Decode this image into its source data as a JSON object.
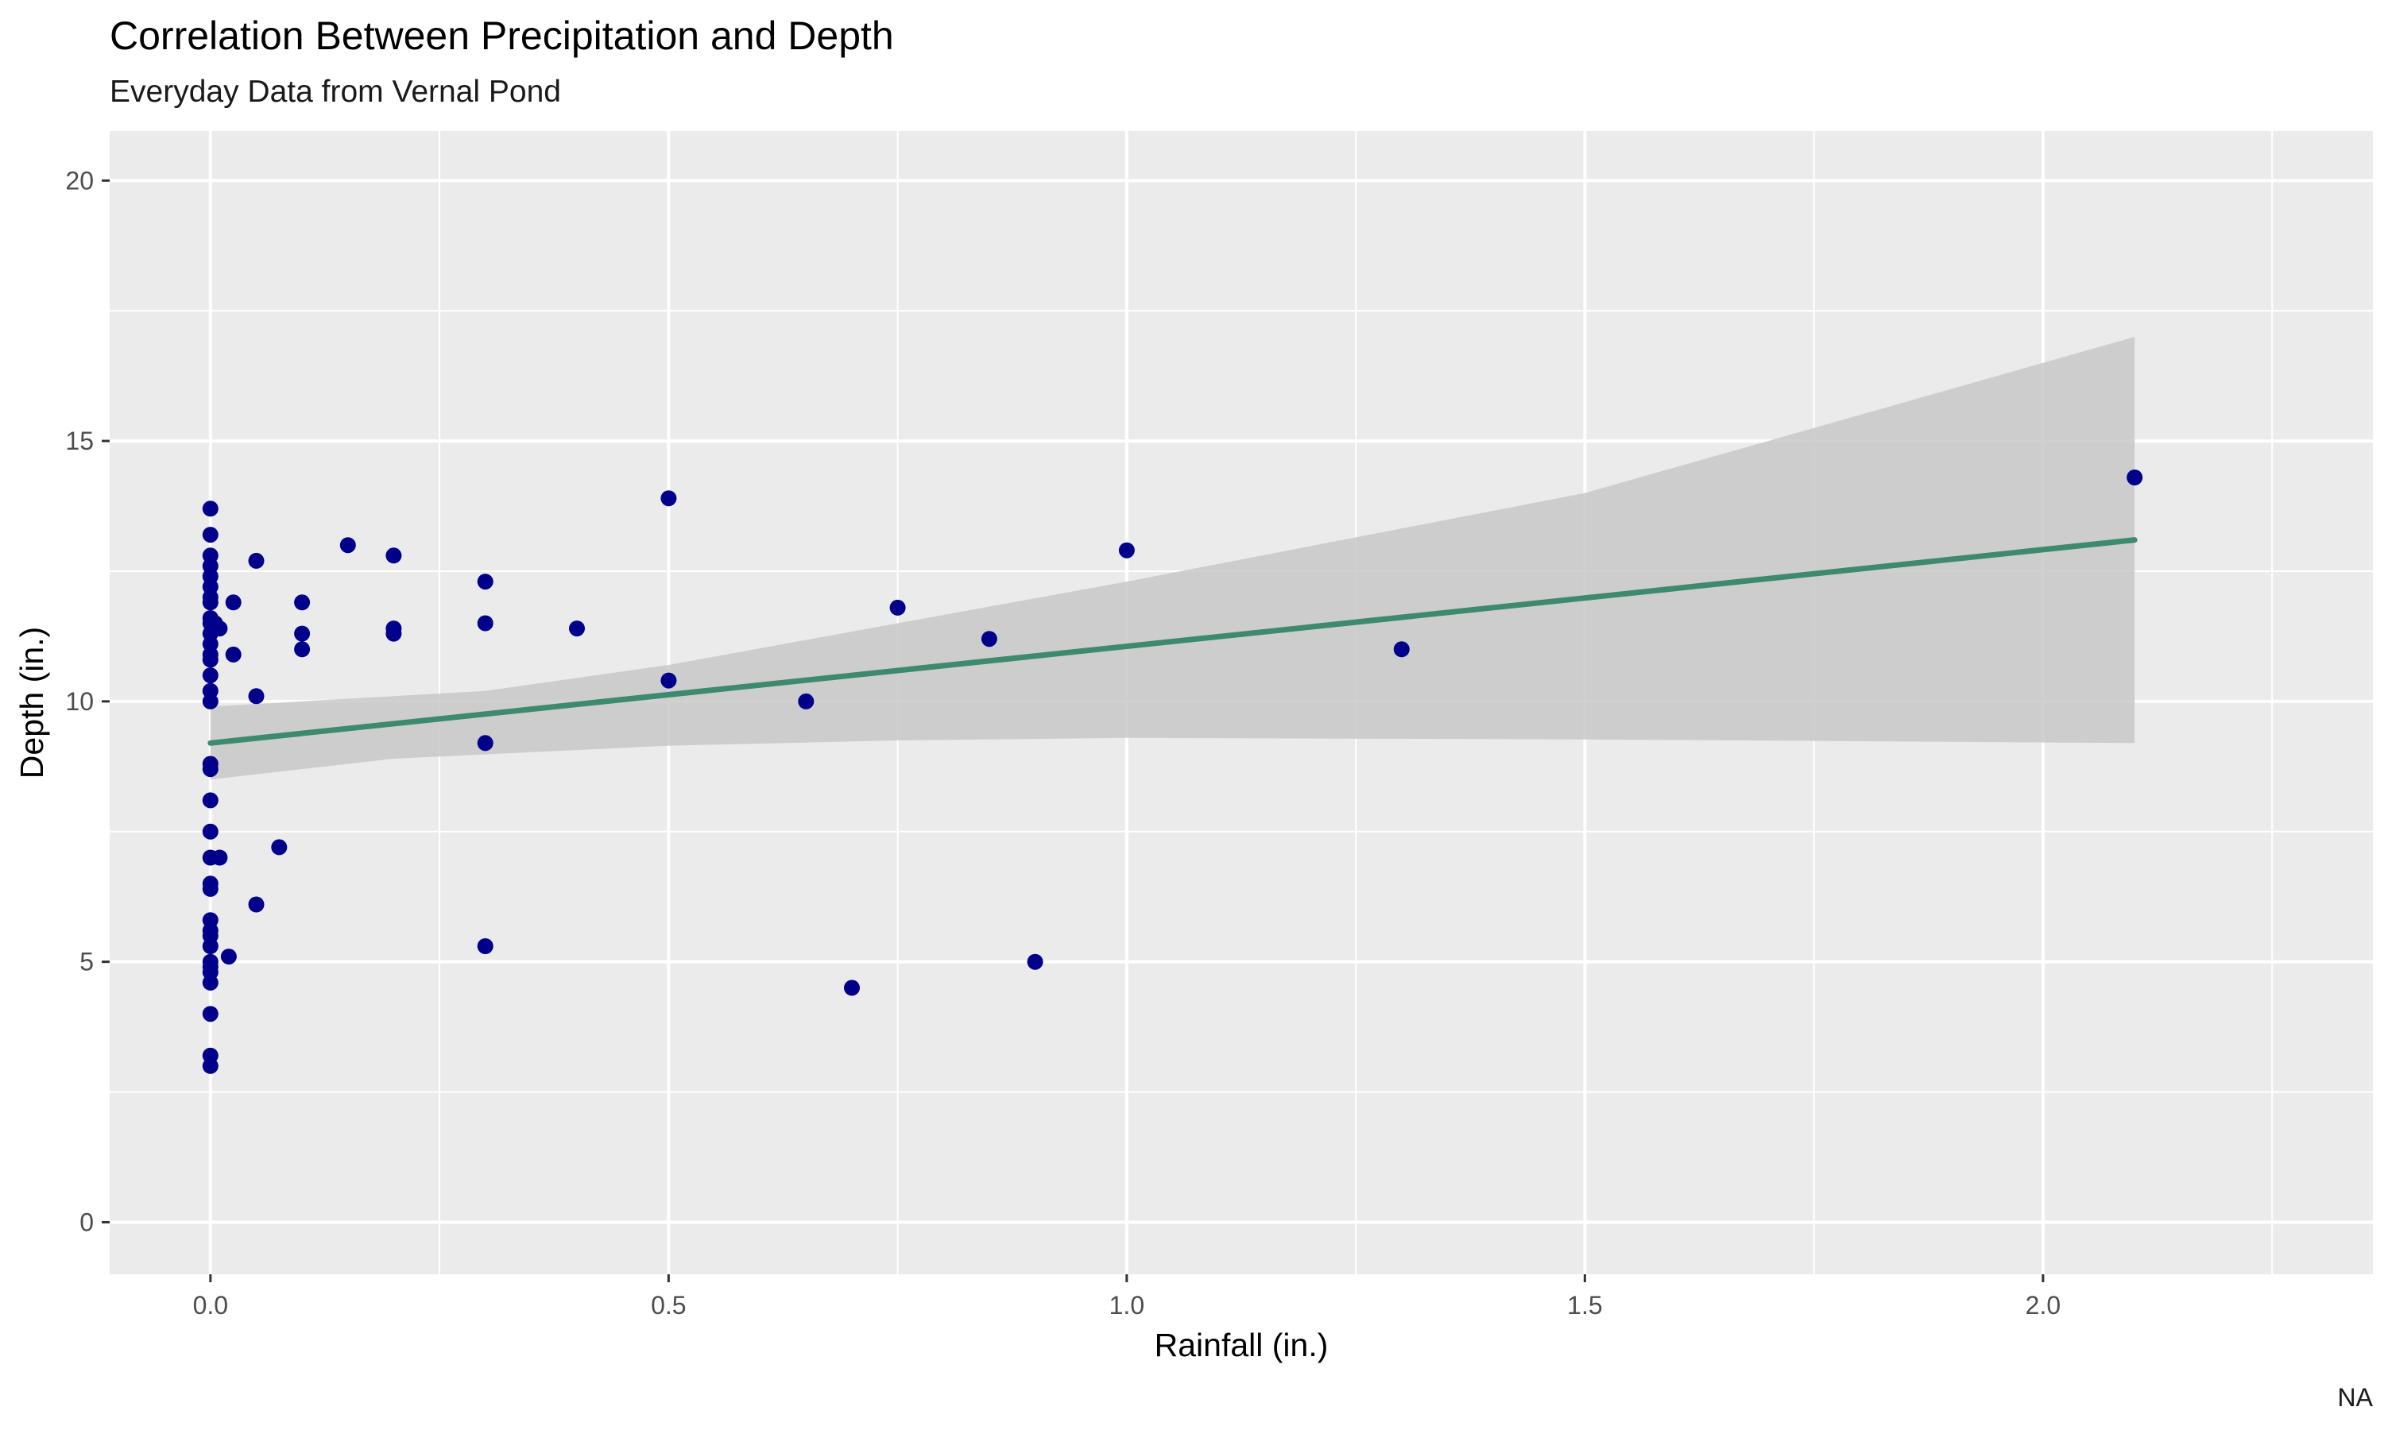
{
  "chart_data": {
    "type": "scatter",
    "title": "Correlation Between Precipitation and Depth",
    "subtitle": "Everyday Data from Vernal Pond",
    "xlabel": "Rainfall (in.)",
    "ylabel": "Depth (in.)",
    "caption": "NA",
    "xlim": [
      -0.11,
      2.36
    ],
    "ylim": [
      -1.0,
      20.95
    ],
    "x_ticks": [
      0.0,
      0.5,
      1.0,
      1.5,
      2.0
    ],
    "x_tick_labels": [
      "0.0",
      "0.5",
      "1.0",
      "1.5",
      "2.0"
    ],
    "y_ticks": [
      0,
      5,
      10,
      15,
      20
    ],
    "y_tick_labels": [
      "0",
      "5",
      "10",
      "15",
      "20"
    ],
    "grid": true,
    "legend": "none",
    "colors": {
      "panel": "#ebebeb",
      "grid": "#ffffff",
      "points": "#00008b",
      "trend_line": "#3d8a6e",
      "confidence_band": "#c8c8c8"
    },
    "series": [
      {
        "type": "scatter",
        "points": [
          [
            0.0,
            13.7
          ],
          [
            0.0,
            13.2
          ],
          [
            0.0,
            12.8
          ],
          [
            0.0,
            12.6
          ],
          [
            0.0,
            12.4
          ],
          [
            0.0,
            12.2
          ],
          [
            0.0,
            12.0
          ],
          [
            0.0,
            11.9
          ],
          [
            0.0,
            11.6
          ],
          [
            0.0,
            11.5
          ],
          [
            0.0,
            11.3
          ],
          [
            0.0,
            11.1
          ],
          [
            0.0,
            10.9
          ],
          [
            0.0,
            10.8
          ],
          [
            0.0,
            10.5
          ],
          [
            0.0,
            10.2
          ],
          [
            0.0,
            10.0
          ],
          [
            0.0,
            8.8
          ],
          [
            0.0,
            8.7
          ],
          [
            0.0,
            8.1
          ],
          [
            0.0,
            7.5
          ],
          [
            0.0,
            7.0
          ],
          [
            0.0,
            6.5
          ],
          [
            0.0,
            6.4
          ],
          [
            0.0,
            5.8
          ],
          [
            0.0,
            5.6
          ],
          [
            0.0,
            5.5
          ],
          [
            0.0,
            5.3
          ],
          [
            0.0,
            5.0
          ],
          [
            0.0,
            4.9
          ],
          [
            0.0,
            4.8
          ],
          [
            0.0,
            4.6
          ],
          [
            0.0,
            4.0
          ],
          [
            0.0,
            3.2
          ],
          [
            0.0,
            3.0
          ],
          [
            0.005,
            11.5
          ],
          [
            0.01,
            11.4
          ],
          [
            0.01,
            7.0
          ],
          [
            0.02,
            5.1
          ],
          [
            0.025,
            11.9
          ],
          [
            0.025,
            10.9
          ],
          [
            0.05,
            12.7
          ],
          [
            0.05,
            10.1
          ],
          [
            0.05,
            6.1
          ],
          [
            0.075,
            7.2
          ],
          [
            0.1,
            11.9
          ],
          [
            0.1,
            11.3
          ],
          [
            0.1,
            11.0
          ],
          [
            0.15,
            13.0
          ],
          [
            0.2,
            12.8
          ],
          [
            0.2,
            11.4
          ],
          [
            0.2,
            11.3
          ],
          [
            0.3,
            12.3
          ],
          [
            0.3,
            11.5
          ],
          [
            0.3,
            9.2
          ],
          [
            0.3,
            5.3
          ],
          [
            0.4,
            11.4
          ],
          [
            0.5,
            13.9
          ],
          [
            0.5,
            10.4
          ],
          [
            0.65,
            10.0
          ],
          [
            0.7,
            4.5
          ],
          [
            0.75,
            11.8
          ],
          [
            0.85,
            11.2
          ],
          [
            0.9,
            5.0
          ],
          [
            1.0,
            12.9
          ],
          [
            1.3,
            11.0
          ],
          [
            2.1,
            14.3
          ]
        ]
      },
      {
        "type": "line",
        "method": "lm",
        "points": [
          [
            0.0,
            9.2
          ],
          [
            2.1,
            13.1
          ]
        ],
        "band_upper": [
          [
            0.0,
            9.9
          ],
          [
            0.3,
            10.2
          ],
          [
            0.5,
            10.7
          ],
          [
            0.75,
            11.5
          ],
          [
            1.0,
            12.3
          ],
          [
            1.5,
            14.0
          ],
          [
            2.1,
            17.0
          ]
        ],
        "band_lower": [
          [
            0.0,
            8.5
          ],
          [
            0.2,
            8.9
          ],
          [
            0.5,
            9.15
          ],
          [
            0.75,
            9.25
          ],
          [
            1.0,
            9.3
          ],
          [
            1.5,
            9.27
          ],
          [
            2.1,
            9.2
          ]
        ]
      }
    ]
  }
}
